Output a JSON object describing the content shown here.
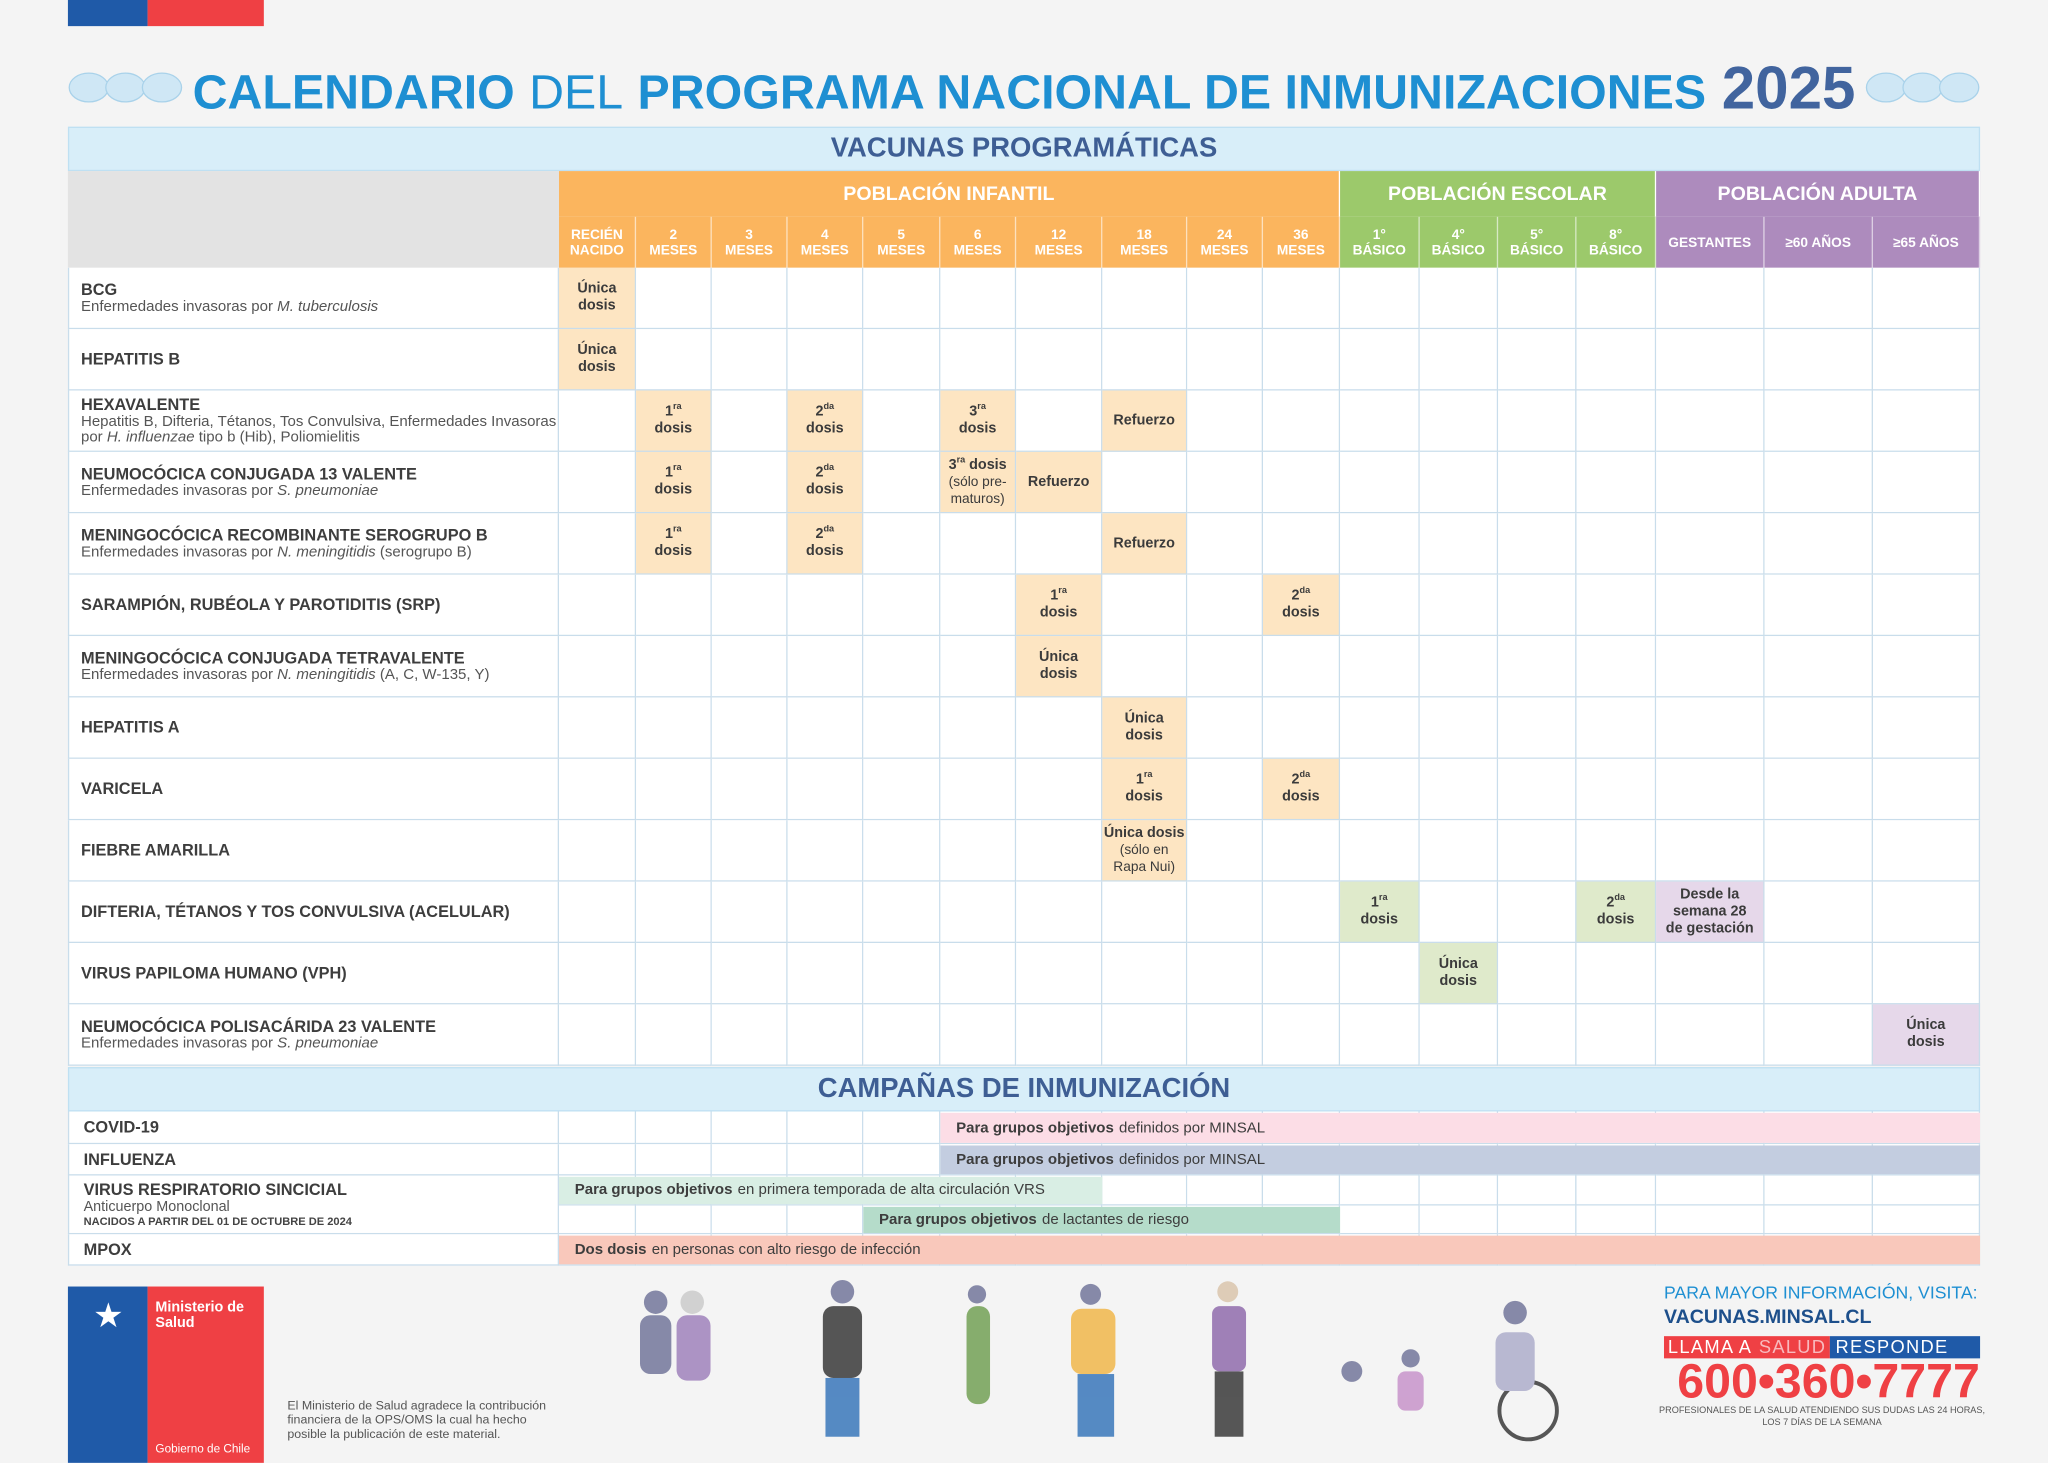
{
  "header": {
    "title_bold_1": "CALENDARIO",
    "title_light": "DEL",
    "title_bold_2": "PROGRAMA NACIONAL DE INMUNIZACIONES",
    "year": "2025"
  },
  "table": {
    "title": "VACUNAS PROGRAMÁTICAS",
    "groups": [
      {
        "label": "POBLACIÓN INFANTIL",
        "color": "#fbb55e",
        "cell_color": "#fde5c2",
        "columns": [
          [
            "RECIÉN",
            "NACIDO"
          ],
          [
            "2",
            "MESES"
          ],
          [
            "3",
            "MESES"
          ],
          [
            "4",
            "MESES"
          ],
          [
            "5",
            "MESES"
          ],
          [
            "6",
            "MESES"
          ],
          [
            "12",
            "MESES"
          ],
          [
            "18",
            "MESES"
          ],
          [
            "24",
            "MESES"
          ],
          [
            "36",
            "MESES"
          ]
        ]
      },
      {
        "label": "POBLACIÓN ESCOLAR",
        "color": "#9cc96b",
        "cell_color": "#dfeacb",
        "columns": [
          [
            "1°",
            "BÁSICO"
          ],
          [
            "4°",
            "BÁSICO"
          ],
          [
            "5°",
            "BÁSICO"
          ],
          [
            "8°",
            "BÁSICO"
          ]
        ]
      },
      {
        "label": "POBLACIÓN ADULTA",
        "color": "#ad8bbd",
        "cell_color": "#e6d8ea",
        "columns": [
          [
            "GESTANTES"
          ],
          [
            "≥60 AÑOS"
          ],
          [
            "≥65 AÑOS"
          ]
        ]
      }
    ],
    "rows": [
      {
        "name": "BCG",
        "desc": [
          {
            "t": "Enfermedades invasoras por "
          },
          {
            "t": "M. tuberculosis",
            "i": true
          }
        ],
        "cells": [
          {
            "lines": [
              "Única",
              "dosis"
            ]
          },
          null,
          null,
          null,
          null,
          null,
          null,
          null,
          null,
          null,
          null,
          null,
          null,
          null,
          null,
          null,
          null
        ]
      },
      {
        "name": "HEPATITIS B",
        "cells": [
          {
            "lines": [
              "Única",
              "dosis"
            ]
          },
          null,
          null,
          null,
          null,
          null,
          null,
          null,
          null,
          null,
          null,
          null,
          null,
          null,
          null,
          null,
          null
        ]
      },
      {
        "name": "HEXAVALENTE",
        "desc": [
          {
            "t": "Hepatitis B, Difteria, Tétanos, Tos Convulsiva, Enfermedades Invasoras por "
          },
          {
            "t": "H. influenzae",
            "i": true
          },
          {
            "t": " tipo b (Hib), Poliomielitis"
          }
        ],
        "cells": [
          null,
          {
            "ord": "1",
            "sup": "ra",
            "text": "dosis"
          },
          null,
          {
            "ord": "2",
            "sup": "da",
            "text": "dosis"
          },
          null,
          {
            "ord": "3",
            "sup": "ra",
            "text": "dosis"
          },
          null,
          {
            "lines": [
              "Refuerzo"
            ]
          },
          null,
          null,
          null,
          null,
          null,
          null,
          null,
          null,
          null
        ]
      },
      {
        "name": "NEUMOCÓCICA CONJUGADA 13 VALENTE",
        "desc": [
          {
            "t": "Enfermedades invasoras por "
          },
          {
            "t": "S. pneumoniae",
            "i": true
          }
        ],
        "cells": [
          null,
          {
            "ord": "1",
            "sup": "ra",
            "text": "dosis"
          },
          null,
          {
            "ord": "2",
            "sup": "da",
            "text": "dosis"
          },
          null,
          {
            "ord": "3",
            "sup": "ra",
            "text": "dosis",
            "inline": true,
            "note": [
              "(sólo pre-",
              "maturos)"
            ]
          },
          {
            "lines": [
              "Refuerzo"
            ]
          },
          null,
          null,
          null,
          null,
          null,
          null,
          null,
          null,
          null,
          null
        ]
      },
      {
        "name": "MENINGOCÓCICA RECOMBINANTE SEROGRUPO B",
        "desc": [
          {
            "t": "Enfermedades invasoras por "
          },
          {
            "t": "N. meningitidis",
            "i": true
          },
          {
            "t": " (serogrupo B)"
          }
        ],
        "cells": [
          null,
          {
            "ord": "1",
            "sup": "ra",
            "text": "dosis"
          },
          null,
          {
            "ord": "2",
            "sup": "da",
            "text": "dosis"
          },
          null,
          null,
          null,
          {
            "lines": [
              "Refuerzo"
            ]
          },
          null,
          null,
          null,
          null,
          null,
          null,
          null,
          null,
          null
        ]
      },
      {
        "name": "SARAMPIÓN, RUBÉOLA Y PAROTIDITIS (SRP)",
        "cells": [
          null,
          null,
          null,
          null,
          null,
          null,
          {
            "ord": "1",
            "sup": "ra",
            "text": "dosis"
          },
          null,
          null,
          {
            "ord": "2",
            "sup": "da",
            "text": "dosis"
          },
          null,
          null,
          null,
          null,
          null,
          null,
          null
        ]
      },
      {
        "name": "MENINGOCÓCICA CONJUGADA TETRAVALENTE",
        "desc": [
          {
            "t": "Enfermedades invasoras por "
          },
          {
            "t": "N. meningitidis",
            "i": true
          },
          {
            "t": " (A, C, W-135, Y)"
          }
        ],
        "cells": [
          null,
          null,
          null,
          null,
          null,
          null,
          {
            "lines": [
              "Única",
              "dosis"
            ]
          },
          null,
          null,
          null,
          null,
          null,
          null,
          null,
          null,
          null,
          null
        ]
      },
      {
        "name": "HEPATITIS A",
        "cells": [
          null,
          null,
          null,
          null,
          null,
          null,
          null,
          {
            "lines": [
              "Única",
              "dosis"
            ]
          },
          null,
          null,
          null,
          null,
          null,
          null,
          null,
          null,
          null
        ]
      },
      {
        "name": "VARICELA",
        "cells": [
          null,
          null,
          null,
          null,
          null,
          null,
          null,
          {
            "ord": "1",
            "sup": "ra",
            "text": "dosis"
          },
          null,
          {
            "ord": "2",
            "sup": "da",
            "text": "dosis"
          },
          null,
          null,
          null,
          null,
          null,
          null,
          null
        ]
      },
      {
        "name": "FIEBRE AMARILLA",
        "cells": [
          null,
          null,
          null,
          null,
          null,
          null,
          null,
          {
            "lines": [
              "Única dosis"
            ],
            "note": [
              "(sólo en",
              "Rapa Nui)"
            ]
          },
          null,
          null,
          null,
          null,
          null,
          null,
          null,
          null,
          null
        ]
      },
      {
        "name": "DIFTERIA, TÉTANOS Y TOS CONVULSIVA (ACELULAR)",
        "cells": [
          null,
          null,
          null,
          null,
          null,
          null,
          null,
          null,
          null,
          null,
          {
            "ord": "1",
            "sup": "ra",
            "text": "dosis"
          },
          null,
          null,
          {
            "ord": "2",
            "sup": "da",
            "text": "dosis"
          },
          {
            "lines": [
              "Desde la",
              "semana 28",
              "de gestación"
            ]
          },
          null,
          null
        ]
      },
      {
        "name": "VIRUS PAPILOMA HUMANO (VPH)",
        "cells": [
          null,
          null,
          null,
          null,
          null,
          null,
          null,
          null,
          null,
          null,
          null,
          {
            "lines": [
              "Única",
              "dosis"
            ]
          },
          null,
          null,
          null,
          null,
          null
        ]
      },
      {
        "name": "NEUMOCÓCICA POLISACÁRIDA 23 VALENTE",
        "desc": [
          {
            "t": "Enfermedades invasoras por "
          },
          {
            "t": "S. pneumoniae",
            "i": true
          }
        ],
        "cells": [
          null,
          null,
          null,
          null,
          null,
          null,
          null,
          null,
          null,
          null,
          null,
          null,
          null,
          null,
          null,
          null,
          {
            "lines": [
              "Única",
              "dosis"
            ]
          }
        ]
      }
    ]
  },
  "campaigns": {
    "title": "CAMPAÑAS DE INMUNIZACIÓN",
    "rows": [
      {
        "name": "COVID-19",
        "bars": [
          {
            "bold": "Para grupos objetivos",
            "text": "definidos por MINSAL",
            "color": "#fcdde6"
          }
        ]
      },
      {
        "name": "INFLUENZA",
        "bars": [
          {
            "bold": "Para grupos objetivos",
            "text": "definidos por MINSAL",
            "color": "#c3cde0"
          }
        ]
      },
      {
        "name": "VIRUS RESPIRATORIO SINCICIAL",
        "sub": "Anticuerpo Monoclonal",
        "note": "NACIDOS A PARTIR DEL 01 DE OCTUBRE DE 2024",
        "bars": [
          {
            "bold": "Para grupos objetivos",
            "text": "en primera temporada de alta circulación VRS",
            "color": "#d9eee4"
          },
          {
            "bold": "Para grupos objetivos",
            "text": "de lactantes de riesgo",
            "color": "#b5dcca"
          }
        ]
      },
      {
        "name": "MPOX",
        "bars": [
          {
            "bold": "Dos dosis",
            "text": "en personas con alto riesgo de infección",
            "color": "#f9c8bb"
          }
        ]
      }
    ]
  },
  "footer": {
    "ministry": "Ministerio de Salud",
    "government": "Gobierno de Chile",
    "acknowledgement": [
      "El Ministerio de Salud agradece la contribución",
      "financiera de la OPS/OMS la cual ha hecho",
      "posible la publicación de este material."
    ],
    "info": "PARA MAYOR INFORMACIÓN, VISITA:",
    "url": "VACUNAS.MINSAL.CL",
    "call_1": "LLAMA A",
    "call_2": "SALUD",
    "call_3": "RESPONDE",
    "phone": "600•360•7777",
    "phone_note": [
      "PROFESIONALES DE LA SALUD ATENDIENDO SUS DUDAS LAS 24 HORAS,",
      "LOS 7 DÍAS DE LA SEMANA"
    ]
  }
}
